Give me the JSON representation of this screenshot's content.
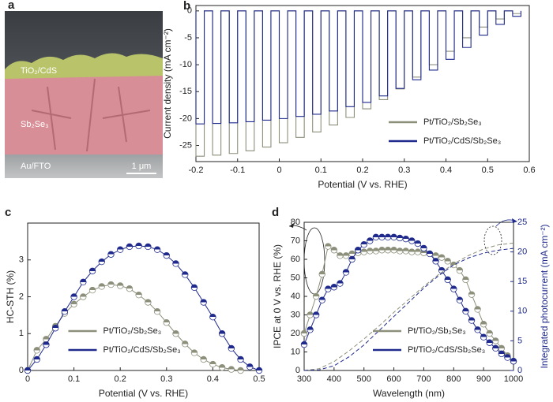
{
  "image": {
    "panel_label": "a",
    "layers": [
      "TiO₂/CdS",
      "Sb₂Se₃",
      "Au/FTO"
    ],
    "scale_bar": "1 μm"
  },
  "chart_data": [
    {
      "type": "line",
      "panel_label": "b",
      "xlabel": "Potential (V vs. RHE)",
      "ylabel": "Current density (mA cm⁻²)",
      "xlim": [
        -0.2,
        0.6
      ],
      "xticks": [
        -0.2,
        -0.1,
        0,
        0.1,
        0.2,
        0.3,
        0.4,
        0.5,
        0.6
      ],
      "ylim": [
        -28,
        1
      ],
      "yticks": [
        -25,
        -20,
        -15,
        -10,
        -5,
        0
      ],
      "legend": "lower right",
      "markers": false,
      "x": [
        -0.2,
        -0.2,
        -0.18,
        -0.18,
        -0.16,
        -0.16,
        -0.14,
        -0.14,
        -0.12,
        -0.12,
        -0.1,
        -0.1,
        -0.08,
        -0.08,
        -0.06,
        -0.06,
        -0.04,
        -0.04,
        -0.02,
        -0.02,
        0,
        0,
        0.02,
        0.02,
        0.04,
        0.04,
        0.06,
        0.06,
        0.08,
        0.08,
        0.1,
        0.1,
        0.12,
        0.12,
        0.14,
        0.14,
        0.16,
        0.16,
        0.18,
        0.18,
        0.2,
        0.2,
        0.22,
        0.22,
        0.24,
        0.24,
        0.26,
        0.26,
        0.28,
        0.28,
        0.3,
        0.3,
        0.32,
        0.32,
        0.34,
        0.34,
        0.36,
        0.36,
        0.38,
        0.38,
        0.4,
        0.4,
        0.42,
        0.42,
        0.44,
        0.44,
        0.46,
        0.46,
        0.48,
        0.48,
        0.5,
        0.5,
        0.52,
        0.52,
        0.54,
        0.54,
        0.56,
        0.56,
        0.58,
        0.58
      ],
      "series": [
        {
          "name": "Pt/TiO₂/Sb₂Se₃",
          "color": "#8c8f7a",
          "values": [
            0,
            -27,
            -27,
            0,
            0,
            -26.8,
            -26.8,
            0,
            0,
            -26.5,
            -26.5,
            0,
            0,
            -26,
            -26,
            0,
            0,
            -25.3,
            -25.3,
            0,
            0,
            -24.5,
            -24.5,
            0,
            0,
            -23.5,
            -23.5,
            0,
            0,
            -22.5,
            -22.5,
            0,
            0,
            -21.2,
            -21.2,
            0,
            0,
            -19.8,
            -19.8,
            0,
            0,
            -18.2,
            -18.2,
            0,
            0,
            -16.5,
            -16.5,
            0,
            0,
            -14.5,
            -14.5,
            0,
            0,
            -12.3,
            -12.3,
            0,
            0,
            -10,
            -10,
            0,
            0,
            -7.5,
            -7.5,
            0,
            0,
            -5,
            -5,
            0,
            0,
            -3,
            -3,
            0,
            0,
            -1.5,
            -1.5,
            0,
            0,
            -0.5,
            -0.5,
            0
          ]
        },
        {
          "name": "Pt/TiO₂/CdS/Sb₂Se₃",
          "color": "#1f2a8c",
          "values": [
            0,
            -21,
            -21,
            0,
            0,
            -20.9,
            -20.9,
            0,
            0,
            -20.8,
            -20.8,
            0,
            0,
            -20.6,
            -20.6,
            0,
            0,
            -20.3,
            -20.3,
            0,
            0,
            -20,
            -20,
            0,
            0,
            -19.6,
            -19.6,
            0,
            0,
            -19.2,
            -19.2,
            0,
            0,
            -18.6,
            -18.6,
            0,
            0,
            -17.8,
            -17.8,
            0,
            0,
            -17,
            -17,
            0,
            0,
            -15.8,
            -15.8,
            0,
            0,
            -14.4,
            -14.4,
            0,
            0,
            -12.8,
            -12.8,
            0,
            0,
            -11,
            -11,
            0,
            0,
            -9,
            -9,
            0,
            0,
            -6.8,
            -6.8,
            0,
            0,
            -4.5,
            -4.5,
            0,
            0,
            -2.5,
            -2.5,
            0,
            0,
            -1,
            -1,
            0
          ]
        }
      ]
    },
    {
      "type": "line",
      "panel_label": "c",
      "xlabel": "Potential (V vs. RHE)",
      "ylabel": "HC-STH (%)",
      "xlim": [
        0,
        0.5
      ],
      "xticks": [
        0,
        0.1,
        0.2,
        0.3,
        0.4,
        0.5
      ],
      "ylim": [
        0,
        4
      ],
      "yticks": [
        0,
        1,
        2,
        3
      ],
      "legend": "lower center",
      "markers": true,
      "series": [
        {
          "name": "Pt/TiO₂/Sb₂Se₃",
          "color": "#8c8f7a",
          "x": [
            0,
            0.02,
            0.04,
            0.06,
            0.08,
            0.1,
            0.12,
            0.14,
            0.16,
            0.18,
            0.2,
            0.22,
            0.24,
            0.26,
            0.28,
            0.3,
            0.32,
            0.34,
            0.36,
            0.38,
            0.4,
            0.42,
            0.44,
            0.46
          ],
          "values": [
            0,
            0.55,
            0.85,
            1.2,
            1.55,
            1.8,
            2.0,
            2.18,
            2.28,
            2.33,
            2.3,
            2.22,
            2.05,
            1.85,
            1.6,
            1.3,
            1.0,
            0.72,
            0.48,
            0.3,
            0.17,
            0.08,
            0.03,
            0
          ]
        },
        {
          "name": "Pt/TiO₂/CdS/Sb₂Se₃",
          "color": "#1f2a8c",
          "x": [
            0,
            0.02,
            0.04,
            0.06,
            0.08,
            0.1,
            0.12,
            0.14,
            0.16,
            0.18,
            0.2,
            0.22,
            0.24,
            0.26,
            0.28,
            0.3,
            0.32,
            0.34,
            0.36,
            0.38,
            0.4,
            0.42,
            0.44,
            0.46,
            0.48,
            0.5
          ],
          "values": [
            0,
            0.3,
            0.7,
            1.15,
            1.6,
            2.0,
            2.4,
            2.7,
            2.95,
            3.15,
            3.28,
            3.36,
            3.38,
            3.36,
            3.28,
            3.12,
            2.9,
            2.6,
            2.25,
            1.85,
            1.45,
            1.0,
            0.6,
            0.3,
            0.1,
            0
          ]
        }
      ]
    },
    {
      "type": "line",
      "panel_label": "d",
      "xlabel": "Wavelength (nm)",
      "ylabel": "IPCE at 0 V vs. RHE (%)",
      "y2label": "Integrated photocurrent (mA cm⁻²)",
      "y2color": "#1f2a8c",
      "xlim": [
        300,
        1000
      ],
      "xticks": [
        300,
        400,
        500,
        600,
        700,
        800,
        900,
        1000
      ],
      "ylim": [
        0,
        80
      ],
      "yticks": [
        0,
        10,
        20,
        30,
        40,
        50,
        60,
        70,
        80
      ],
      "y2lim": [
        0,
        25
      ],
      "y2ticks": [
        0,
        5,
        10,
        15,
        20,
        25
      ],
      "legend": "lower right",
      "markers": true,
      "series": [
        {
          "name": "Pt/TiO₂/Sb₂Se₃",
          "color": "#8c8f7a",
          "x": [
            300,
            320,
            340,
            360,
            380,
            400,
            420,
            440,
            460,
            480,
            500,
            520,
            540,
            560,
            580,
            600,
            620,
            640,
            660,
            680,
            700,
            720,
            740,
            760,
            780,
            800,
            820,
            840,
            860,
            880,
            900,
            920,
            940,
            960,
            980,
            1000
          ],
          "values": [
            20,
            30,
            40,
            52,
            67,
            65,
            62,
            62,
            63,
            63.5,
            64,
            64.5,
            64.5,
            65,
            65,
            65,
            64.5,
            64.5,
            64,
            64,
            63.5,
            63,
            62,
            61,
            59,
            57,
            54,
            49,
            41,
            33,
            25,
            20,
            16,
            12,
            8,
            5
          ]
        },
        {
          "name": "Pt/TiO₂/CdS/Sb₂Se₃",
          "color": "#1f2a8c",
          "x": [
            300,
            320,
            340,
            360,
            380,
            400,
            420,
            440,
            460,
            480,
            500,
            520,
            540,
            560,
            580,
            600,
            620,
            640,
            660,
            680,
            700,
            720,
            740,
            760,
            780,
            800,
            820,
            840,
            860,
            880,
            900,
            920,
            940,
            960,
            980,
            1000
          ],
          "values": [
            14,
            22,
            30,
            38,
            44,
            45,
            47,
            53,
            60,
            65,
            68,
            70,
            72,
            72,
            72,
            72,
            71.5,
            71,
            70,
            68.5,
            66,
            63,
            59,
            54,
            49,
            44,
            38,
            32,
            27,
            22,
            18,
            15,
            12,
            9,
            7,
            5
          ]
        },
        {
          "color": "#8c8f7a",
          "axis": "y2",
          "linestyle": "dashed",
          "x": [
            300,
            350,
            400,
            450,
            500,
            550,
            600,
            650,
            700,
            750,
            800,
            850,
            900,
            950,
            1000
          ],
          "values": [
            0,
            0.3,
            1.5,
            3.3,
            5.3,
            7.5,
            9.8,
            12,
            14.2,
            16.2,
            18,
            19.4,
            20.5,
            21.2,
            21.5
          ]
        },
        {
          "color": "#1f2a8c",
          "axis": "y2",
          "linestyle": "dashed",
          "x": [
            300,
            350,
            400,
            450,
            500,
            550,
            600,
            650,
            700,
            750,
            800,
            850,
            900,
            950,
            1000
          ],
          "values": [
            0,
            0.1,
            0.8,
            2.3,
            4.3,
            6.7,
            9.1,
            11.5,
            13.9,
            16,
            17.8,
            19,
            19.8,
            20.3,
            20.6
          ]
        }
      ]
    }
  ]
}
